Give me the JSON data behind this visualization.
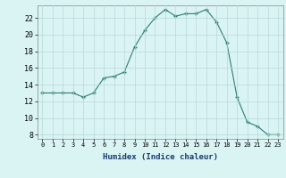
{
  "x": [
    0,
    1,
    2,
    3,
    4,
    5,
    6,
    7,
    8,
    9,
    10,
    11,
    12,
    13,
    14,
    15,
    16,
    17,
    18,
    19,
    20,
    21,
    22,
    23
  ],
  "y": [
    13,
    13,
    13,
    13,
    12.5,
    13,
    14.8,
    15,
    15.5,
    18.5,
    20.5,
    22,
    23,
    22.2,
    22.5,
    22.5,
    23,
    21.5,
    19,
    12.5,
    9.5,
    9,
    8,
    8
  ],
  "line_color": "#2e7d6e",
  "marker": "+",
  "bg_color": "#daf4f4",
  "grid_color": "#b8d8d8",
  "xlabel": "Humidex (Indice chaleur)",
  "xlim": [
    -0.5,
    23.5
  ],
  "ylim": [
    7.5,
    23.5
  ],
  "yticks": [
    8,
    10,
    12,
    14,
    16,
    18,
    20,
    22
  ],
  "xticks": [
    0,
    1,
    2,
    3,
    4,
    5,
    6,
    7,
    8,
    9,
    10,
    11,
    12,
    13,
    14,
    15,
    16,
    17,
    18,
    19,
    20,
    21,
    22,
    23
  ],
  "xtick_labels": [
    "0",
    "1",
    "2",
    "3",
    "4",
    "5",
    "6",
    "7",
    "8",
    "9",
    "10",
    "11",
    "12",
    "13",
    "14",
    "15",
    "16",
    "17",
    "18",
    "19",
    "20",
    "21",
    "22",
    "23"
  ]
}
